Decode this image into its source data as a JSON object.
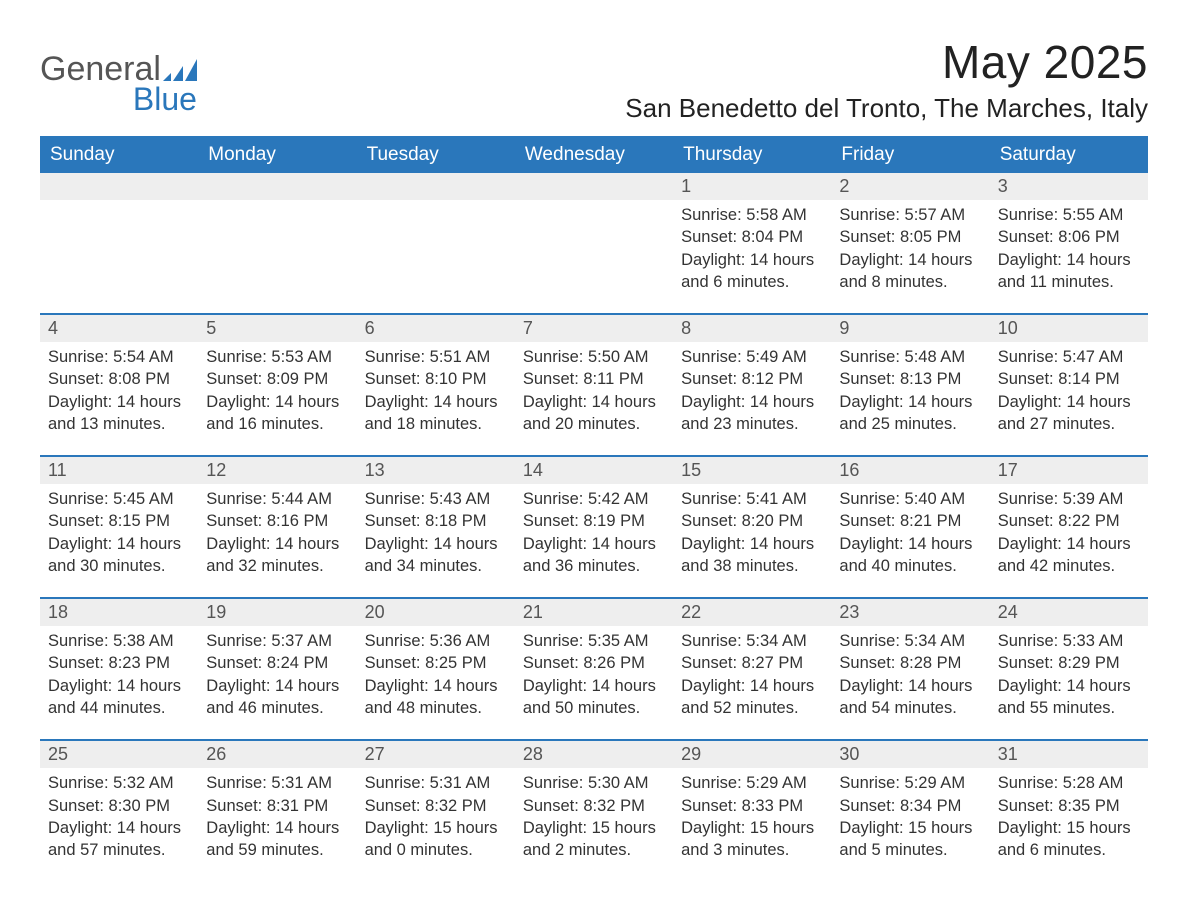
{
  "logo": {
    "text_gray": "General",
    "text_blue": "Blue",
    "icon_color": "#2a77bb",
    "gray_color": "#555555"
  },
  "header": {
    "month_title": "May 2025",
    "location": "San Benedetto del Tronto, The Marches, Italy"
  },
  "columns": [
    "Sunday",
    "Monday",
    "Tuesday",
    "Wednesday",
    "Thursday",
    "Friday",
    "Saturday"
  ],
  "colors": {
    "header_bg": "#2a77bb",
    "header_text": "#ffffff",
    "row_accent": "#2a77bb",
    "daynum_bg": "#eeeeee",
    "daynum_text": "#555555",
    "body_text": "#333333",
    "page_bg": "#ffffff"
  },
  "weeks": [
    [
      null,
      null,
      null,
      null,
      {
        "n": "1",
        "sunrise": "Sunrise: 5:58 AM",
        "sunset": "Sunset: 8:04 PM",
        "daylight": "Daylight: 14 hours and 6 minutes."
      },
      {
        "n": "2",
        "sunrise": "Sunrise: 5:57 AM",
        "sunset": "Sunset: 8:05 PM",
        "daylight": "Daylight: 14 hours and 8 minutes."
      },
      {
        "n": "3",
        "sunrise": "Sunrise: 5:55 AM",
        "sunset": "Sunset: 8:06 PM",
        "daylight": "Daylight: 14 hours and 11 minutes."
      }
    ],
    [
      {
        "n": "4",
        "sunrise": "Sunrise: 5:54 AM",
        "sunset": "Sunset: 8:08 PM",
        "daylight": "Daylight: 14 hours and 13 minutes."
      },
      {
        "n": "5",
        "sunrise": "Sunrise: 5:53 AM",
        "sunset": "Sunset: 8:09 PM",
        "daylight": "Daylight: 14 hours and 16 minutes."
      },
      {
        "n": "6",
        "sunrise": "Sunrise: 5:51 AM",
        "sunset": "Sunset: 8:10 PM",
        "daylight": "Daylight: 14 hours and 18 minutes."
      },
      {
        "n": "7",
        "sunrise": "Sunrise: 5:50 AM",
        "sunset": "Sunset: 8:11 PM",
        "daylight": "Daylight: 14 hours and 20 minutes."
      },
      {
        "n": "8",
        "sunrise": "Sunrise: 5:49 AM",
        "sunset": "Sunset: 8:12 PM",
        "daylight": "Daylight: 14 hours and 23 minutes."
      },
      {
        "n": "9",
        "sunrise": "Sunrise: 5:48 AM",
        "sunset": "Sunset: 8:13 PM",
        "daylight": "Daylight: 14 hours and 25 minutes."
      },
      {
        "n": "10",
        "sunrise": "Sunrise: 5:47 AM",
        "sunset": "Sunset: 8:14 PM",
        "daylight": "Daylight: 14 hours and 27 minutes."
      }
    ],
    [
      {
        "n": "11",
        "sunrise": "Sunrise: 5:45 AM",
        "sunset": "Sunset: 8:15 PM",
        "daylight": "Daylight: 14 hours and 30 minutes."
      },
      {
        "n": "12",
        "sunrise": "Sunrise: 5:44 AM",
        "sunset": "Sunset: 8:16 PM",
        "daylight": "Daylight: 14 hours and 32 minutes."
      },
      {
        "n": "13",
        "sunrise": "Sunrise: 5:43 AM",
        "sunset": "Sunset: 8:18 PM",
        "daylight": "Daylight: 14 hours and 34 minutes."
      },
      {
        "n": "14",
        "sunrise": "Sunrise: 5:42 AM",
        "sunset": "Sunset: 8:19 PM",
        "daylight": "Daylight: 14 hours and 36 minutes."
      },
      {
        "n": "15",
        "sunrise": "Sunrise: 5:41 AM",
        "sunset": "Sunset: 8:20 PM",
        "daylight": "Daylight: 14 hours and 38 minutes."
      },
      {
        "n": "16",
        "sunrise": "Sunrise: 5:40 AM",
        "sunset": "Sunset: 8:21 PM",
        "daylight": "Daylight: 14 hours and 40 minutes."
      },
      {
        "n": "17",
        "sunrise": "Sunrise: 5:39 AM",
        "sunset": "Sunset: 8:22 PM",
        "daylight": "Daylight: 14 hours and 42 minutes."
      }
    ],
    [
      {
        "n": "18",
        "sunrise": "Sunrise: 5:38 AM",
        "sunset": "Sunset: 8:23 PM",
        "daylight": "Daylight: 14 hours and 44 minutes."
      },
      {
        "n": "19",
        "sunrise": "Sunrise: 5:37 AM",
        "sunset": "Sunset: 8:24 PM",
        "daylight": "Daylight: 14 hours and 46 minutes."
      },
      {
        "n": "20",
        "sunrise": "Sunrise: 5:36 AM",
        "sunset": "Sunset: 8:25 PM",
        "daylight": "Daylight: 14 hours and 48 minutes."
      },
      {
        "n": "21",
        "sunrise": "Sunrise: 5:35 AM",
        "sunset": "Sunset: 8:26 PM",
        "daylight": "Daylight: 14 hours and 50 minutes."
      },
      {
        "n": "22",
        "sunrise": "Sunrise: 5:34 AM",
        "sunset": "Sunset: 8:27 PM",
        "daylight": "Daylight: 14 hours and 52 minutes."
      },
      {
        "n": "23",
        "sunrise": "Sunrise: 5:34 AM",
        "sunset": "Sunset: 8:28 PM",
        "daylight": "Daylight: 14 hours and 54 minutes."
      },
      {
        "n": "24",
        "sunrise": "Sunrise: 5:33 AM",
        "sunset": "Sunset: 8:29 PM",
        "daylight": "Daylight: 14 hours and 55 minutes."
      }
    ],
    [
      {
        "n": "25",
        "sunrise": "Sunrise: 5:32 AM",
        "sunset": "Sunset: 8:30 PM",
        "daylight": "Daylight: 14 hours and 57 minutes."
      },
      {
        "n": "26",
        "sunrise": "Sunrise: 5:31 AM",
        "sunset": "Sunset: 8:31 PM",
        "daylight": "Daylight: 14 hours and 59 minutes."
      },
      {
        "n": "27",
        "sunrise": "Sunrise: 5:31 AM",
        "sunset": "Sunset: 8:32 PM",
        "daylight": "Daylight: 15 hours and 0 minutes."
      },
      {
        "n": "28",
        "sunrise": "Sunrise: 5:30 AM",
        "sunset": "Sunset: 8:32 PM",
        "daylight": "Daylight: 15 hours and 2 minutes."
      },
      {
        "n": "29",
        "sunrise": "Sunrise: 5:29 AM",
        "sunset": "Sunset: 8:33 PM",
        "daylight": "Daylight: 15 hours and 3 minutes."
      },
      {
        "n": "30",
        "sunrise": "Sunrise: 5:29 AM",
        "sunset": "Sunset: 8:34 PM",
        "daylight": "Daylight: 15 hours and 5 minutes."
      },
      {
        "n": "31",
        "sunrise": "Sunrise: 5:28 AM",
        "sunset": "Sunset: 8:35 PM",
        "daylight": "Daylight: 15 hours and 6 minutes."
      }
    ]
  ]
}
